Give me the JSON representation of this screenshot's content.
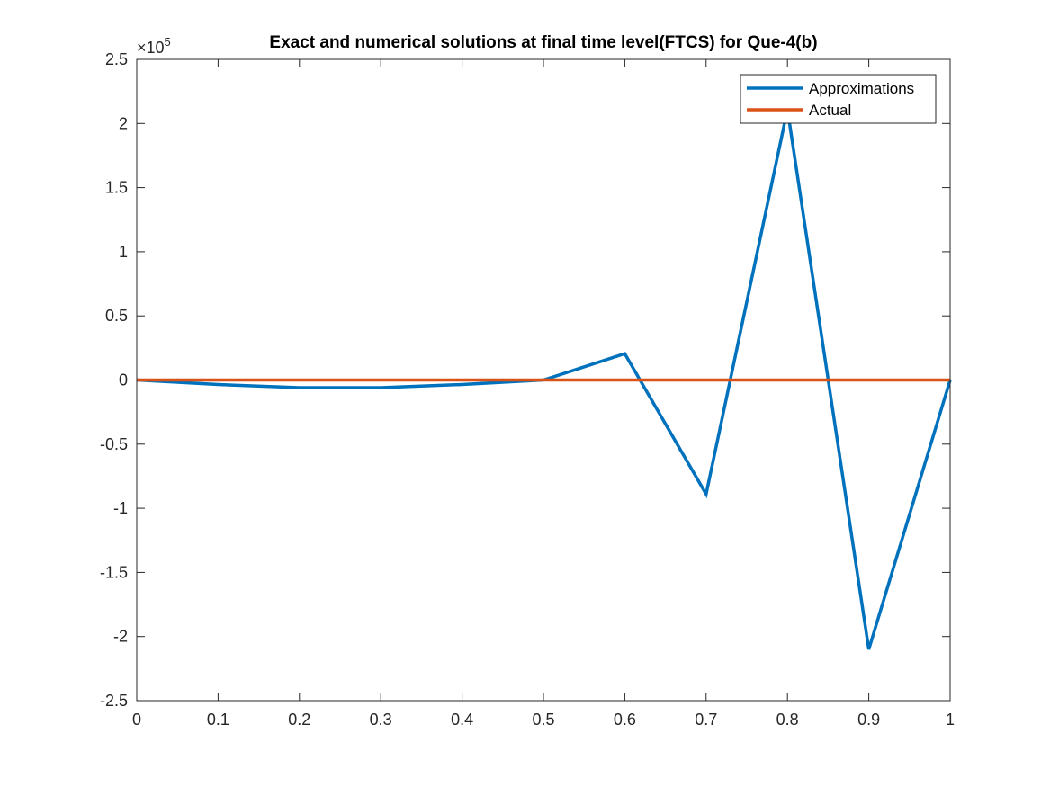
{
  "chart_data": {
    "type": "line",
    "title": "Exact and numerical solutions at final time level(FTCS) for Que-4(b)",
    "xlabel": "",
    "ylabel": "",
    "xlim": [
      0,
      1
    ],
    "ylim": [
      -250000,
      250000
    ],
    "x_ticks": [
      0,
      0.1,
      0.2,
      0.3,
      0.4,
      0.5,
      0.6,
      0.7,
      0.8,
      0.9,
      1
    ],
    "x_tick_labels": [
      "0",
      "0.1",
      "0.2",
      "0.3",
      "0.4",
      "0.5",
      "0.6",
      "0.7",
      "0.8",
      "0.9",
      "1"
    ],
    "y_ticks": [
      -2.5,
      -2,
      -1.5,
      -1,
      -0.5,
      0,
      0.5,
      1,
      1.5,
      2,
      2.5
    ],
    "y_tick_labels": [
      "-2.5",
      "-2",
      "-1.5",
      "-1",
      "-0.5",
      "0",
      "0.5",
      "1",
      "1.5",
      "2",
      "2.5"
    ],
    "y_exponent": {
      "base": "10",
      "power": "5"
    },
    "grid": false,
    "legend_position": "top-right",
    "x": [
      0,
      0.1,
      0.2,
      0.3,
      0.4,
      0.5,
      0.6,
      0.7,
      0.8,
      0.9,
      1
    ],
    "series": [
      {
        "name": "Approximations",
        "color": "#0072BD",
        "values": [
          0,
          -3500,
          -6000,
          -6000,
          -3500,
          0,
          20500,
          -89000,
          211000,
          -210000,
          0
        ]
      },
      {
        "name": "Actual",
        "color": "#D95319",
        "values": [
          0,
          0,
          0,
          0,
          0,
          0,
          0,
          0,
          0,
          0,
          0
        ]
      }
    ]
  }
}
